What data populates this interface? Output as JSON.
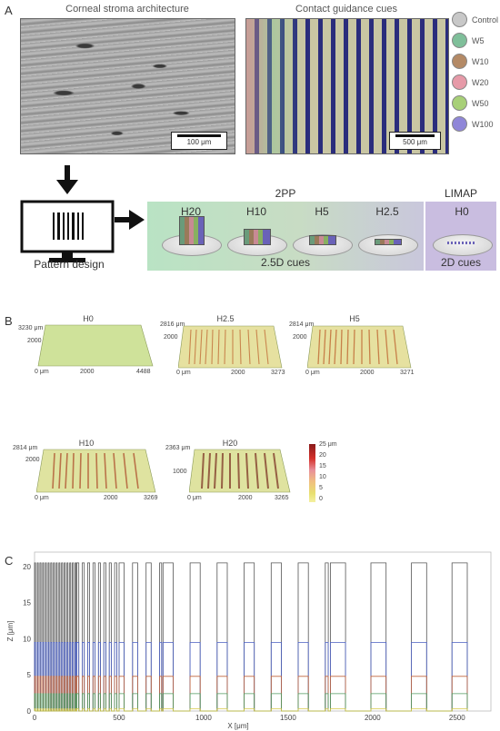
{
  "panel_a": {
    "letter": "A",
    "sem_title": "Corneal stroma architecture",
    "sem_scalebar": "100 μm",
    "cue_title": "Contact guidance cues",
    "cue_scalebar": "500 μm",
    "legend": [
      {
        "label": "Control",
        "color": "#c8c8c8"
      },
      {
        "label": "W5",
        "color": "#7fbf9a"
      },
      {
        "label": "W10",
        "color": "#b48a66"
      },
      {
        "label": "W20",
        "color": "#e69aa8"
      },
      {
        "label": "W50",
        "color": "#a8d078"
      },
      {
        "label": "W100",
        "color": "#8f86d8"
      }
    ],
    "pattern_design_label": "Pattern design",
    "group_2pp": "2PP",
    "group_limap": "LIMAP",
    "heights_2pp": [
      "H20",
      "H10",
      "H5",
      "H2.5"
    ],
    "height_limap": "H0",
    "label_25d": "2.5D cues",
    "label_2d": "2D cues"
  },
  "panel_b": {
    "letter": "B",
    "surfaces": [
      {
        "title": "H0",
        "ymax": "3230 μm",
        "ymid": "2000",
        "xzero": "0 μm",
        "xmid": "2000",
        "xmax": "4488"
      },
      {
        "title": "H2.5",
        "ymax": "2816 μm",
        "ymid": "2000",
        "xzero": "0 μm",
        "xmid": "2000",
        "xmax": "3273"
      },
      {
        "title": "H5",
        "ymax": "2814 μm",
        "ymid": "2000",
        "xzero": "0 μm",
        "xmid": "2000",
        "xmax": "3271"
      },
      {
        "title": "H10",
        "ymax": "2814 μm",
        "ymid": "2000",
        "xzero": "0 μm",
        "xmid": "2000",
        "xmax": "3269"
      },
      {
        "title": "H20",
        "ymax": "2363 μm",
        "ymid": "1000",
        "xzero": "0 μm",
        "xmid": "2000",
        "xmax": "3265"
      }
    ],
    "colorbar_ticks": [
      "25 μm",
      "20",
      "15",
      "10",
      "5",
      "0"
    ]
  },
  "panel_c": {
    "letter": "C",
    "chart_data": {
      "type": "line",
      "xlabel": "X [μm]",
      "ylabel": "Z [μm]",
      "xlim": [
        0,
        2700
      ],
      "ylim": [
        0,
        22
      ],
      "xticks": [
        0,
        500,
        1000,
        1500,
        2000,
        2500
      ],
      "yticks": [
        0,
        5,
        10,
        15,
        20
      ],
      "series": [
        {
          "color": "#555555",
          "height": 20.5
        },
        {
          "color": "#4a5fc1",
          "height": 9.5
        },
        {
          "color": "#c0643c",
          "height": 4.8
        },
        {
          "color": "#4f9a5f",
          "height": 2.4
        },
        {
          "color": "#d6c84a",
          "height": 0.3
        }
      ],
      "pitches": [
        {
          "x_start": 0,
          "x_end": 250,
          "width": 10
        },
        {
          "x_start": 250,
          "x_end": 500,
          "width": 20
        },
        {
          "x_start": 500,
          "x_end": 760,
          "width": 50
        },
        {
          "x_start": 760,
          "x_end": 1750,
          "width": 100
        },
        {
          "x_start": 1750,
          "x_end": 2700,
          "width": 150
        }
      ]
    }
  }
}
